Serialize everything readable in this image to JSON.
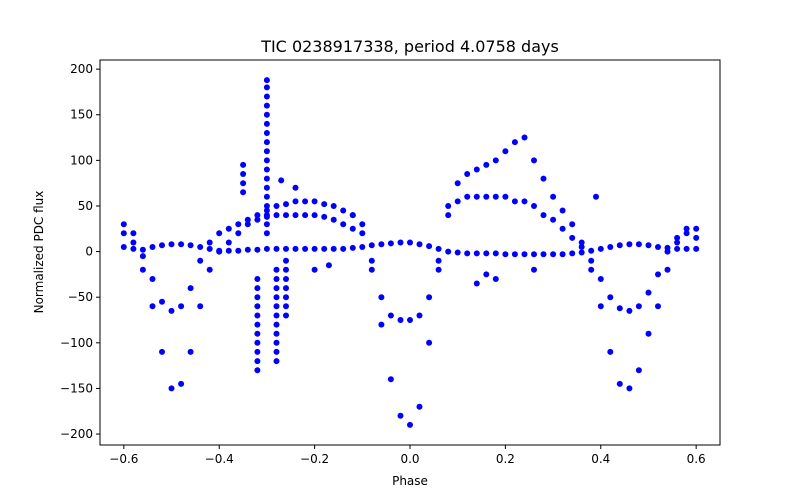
{
  "chart_data": {
    "type": "scatter",
    "title": "TIC 0238917338, period 4.0758 days",
    "xlabel": "Phase",
    "ylabel": "Normalized PDC flux",
    "xlim": [
      -0.65,
      0.65
    ],
    "ylim": [
      -212,
      210
    ],
    "x_ticks": [
      -0.6,
      -0.4,
      -0.2,
      0.0,
      0.2,
      0.4,
      0.6
    ],
    "x_tick_labels": [
      "−0.6",
      "−0.4",
      "−0.2",
      "0.0",
      "0.2",
      "0.4",
      "0.6"
    ],
    "y_ticks": [
      -200,
      -150,
      -100,
      -50,
      0,
      50,
      100,
      150,
      200
    ],
    "y_tick_labels": [
      "−200",
      "−150",
      "−100",
      "−50",
      "0",
      "50",
      "100",
      "150",
      "200"
    ],
    "grid": false,
    "marker_color": "#0000ff",
    "series": [
      {
        "x": [
          -0.6,
          -0.58,
          -0.56,
          -0.54,
          -0.52,
          -0.5,
          -0.48,
          -0.46,
          -0.44,
          -0.42,
          -0.4,
          -0.38,
          -0.36,
          -0.34,
          -0.32,
          -0.3,
          -0.28,
          -0.26,
          -0.24,
          -0.22,
          -0.2,
          -0.18,
          -0.16,
          -0.14,
          -0.12,
          -0.1,
          -0.08,
          -0.06,
          -0.04,
          -0.02,
          0.0,
          0.02,
          0.04,
          0.06,
          0.08,
          0.1,
          0.12,
          0.14,
          0.16,
          0.18,
          0.2,
          0.22,
          0.24,
          0.26,
          0.28,
          0.3,
          0.32,
          0.34,
          0.36,
          0.38,
          0.4,
          0.42,
          0.44,
          0.46,
          0.48,
          0.5,
          0.52,
          0.54,
          0.56,
          0.58,
          0.6
        ],
        "y": [
          5,
          3,
          2,
          5,
          7,
          8,
          8,
          7,
          5,
          3,
          1,
          1,
          1,
          2,
          2,
          3,
          3,
          3,
          3,
          3,
          3,
          3,
          3,
          3,
          4,
          5,
          7,
          8,
          9,
          10,
          10,
          8,
          6,
          3,
          0,
          -1,
          -2,
          -2,
          -2,
          -2,
          -3,
          -3,
          -3,
          -3,
          -3,
          -3,
          -3,
          -2,
          -1,
          1,
          3,
          5,
          7,
          8,
          8,
          7,
          5,
          4,
          3,
          3,
          3
        ]
      },
      {
        "x": [
          -0.6,
          -0.58,
          -0.56,
          -0.54,
          -0.52,
          -0.5,
          -0.48,
          -0.46,
          -0.44,
          -0.42,
          -0.4,
          -0.38,
          -0.36,
          -0.34,
          -0.32,
          -0.3,
          -0.28,
          -0.26,
          -0.24,
          -0.22,
          -0.2,
          -0.18,
          -0.16,
          -0.14,
          -0.12,
          -0.1,
          -0.08,
          -0.06,
          -0.04,
          -0.02,
          0.0,
          0.02,
          0.04,
          0.06,
          0.08,
          0.1,
          0.12,
          0.14,
          0.16,
          0.18,
          0.2,
          0.22,
          0.24,
          0.26,
          0.28,
          0.3,
          0.32,
          0.34,
          0.36,
          0.38,
          0.4,
          0.42,
          0.44,
          0.46,
          0.48,
          0.5,
          0.52,
          0.54,
          0.56,
          0.58,
          0.6
        ],
        "y": [
          20,
          10,
          -20,
          -60,
          -110,
          -150,
          -145,
          -110,
          -60,
          -20,
          0,
          10,
          20,
          30,
          40,
          45,
          50,
          52,
          55,
          55,
          55,
          52,
          50,
          45,
          40,
          30,
          -20,
          -80,
          -140,
          -180,
          -190,
          -170,
          -100,
          -20,
          50,
          75,
          85,
          90,
          95,
          100,
          110,
          120,
          125,
          100,
          80,
          60,
          45,
          30,
          10,
          -20,
          -60,
          -110,
          -145,
          -150,
          -130,
          -90,
          -60,
          -20,
          10,
          20,
          15
        ]
      },
      {
        "x": [
          -0.6,
          -0.58,
          -0.56,
          -0.54,
          -0.52,
          -0.5,
          -0.48,
          -0.46,
          -0.44,
          -0.42,
          -0.4,
          -0.38,
          -0.36,
          -0.34,
          -0.32,
          -0.3,
          -0.28,
          -0.26,
          -0.24,
          -0.22,
          -0.2,
          -0.18,
          -0.16,
          -0.14,
          -0.12,
          -0.1,
          -0.08,
          -0.06,
          -0.04,
          -0.02,
          0.0,
          0.02,
          0.04,
          0.06,
          0.08,
          0.1,
          0.12,
          0.14,
          0.16,
          0.18,
          0.2,
          0.22,
          0.24,
          0.26,
          0.28,
          0.3,
          0.32,
          0.34,
          0.36,
          0.38,
          0.4,
          0.42,
          0.44,
          0.46,
          0.48,
          0.5,
          0.52,
          0.54,
          0.56,
          0.58,
          0.6
        ],
        "y": [
          30,
          20,
          -5,
          -30,
          -55,
          -65,
          -60,
          -40,
          -10,
          10,
          20,
          25,
          30,
          35,
          35,
          38,
          40,
          40,
          40,
          40,
          40,
          38,
          35,
          30,
          25,
          20,
          -10,
          -50,
          -70,
          -75,
          -75,
          -70,
          -50,
          -10,
          40,
          55,
          60,
          60,
          60,
          60,
          60,
          55,
          55,
          50,
          40,
          35,
          25,
          15,
          5,
          -10,
          -30,
          -50,
          -62,
          -65,
          -60,
          -45,
          -25,
          0,
          15,
          25,
          25
        ]
      },
      {
        "x": [
          -0.3,
          -0.3,
          -0.3,
          -0.3,
          -0.3,
          -0.3,
          -0.3,
          -0.3,
          -0.3,
          -0.3,
          -0.3,
          -0.3,
          -0.3,
          -0.3,
          -0.3,
          -0.3,
          -0.3,
          -0.3,
          -0.28,
          -0.28,
          -0.28,
          -0.28,
          -0.28,
          -0.28,
          -0.28,
          -0.28,
          -0.28,
          -0.28,
          -0.28,
          -0.32,
          -0.32,
          -0.32,
          -0.32,
          -0.32,
          -0.32,
          -0.32,
          -0.32,
          -0.32,
          -0.32,
          -0.32,
          -0.35,
          -0.35,
          -0.35,
          -0.35,
          -0.26,
          -0.26,
          -0.26,
          -0.26,
          -0.26,
          -0.26,
          -0.26
        ],
        "y": [
          188,
          180,
          170,
          160,
          150,
          140,
          130,
          120,
          110,
          100,
          90,
          80,
          70,
          60,
          50,
          40,
          30,
          20,
          -20,
          -30,
          -40,
          -50,
          -60,
          -70,
          -80,
          -90,
          -100,
          -110,
          -120,
          -30,
          -40,
          -50,
          -60,
          -70,
          -80,
          -90,
          -100,
          -110,
          -120,
          -130,
          95,
          85,
          75,
          65,
          -10,
          -20,
          -30,
          -40,
          -50,
          -60,
          -70
        ]
      },
      {
        "x": [
          -0.27,
          -0.24,
          -0.2,
          -0.17,
          -0.12,
          0.14,
          0.16,
          0.18,
          0.26,
          0.39
        ],
        "y": [
          78,
          70,
          -20,
          -15,
          40,
          -35,
          -25,
          -30,
          -20,
          60
        ]
      }
    ]
  }
}
